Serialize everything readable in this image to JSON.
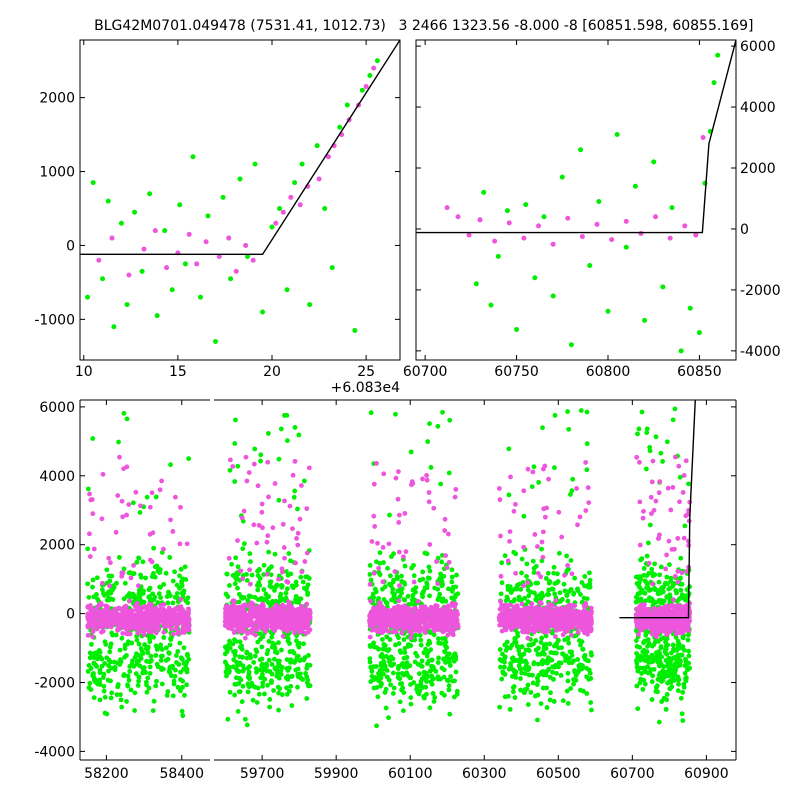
{
  "figure": {
    "title_left": "BLG42M0701.049478 (7531.41, 1012.73)",
    "title_right": "3 2466 1323.56 -8.000 -8 [60851.598, 60855.169]"
  },
  "colors": {
    "series_a": "#00ee00",
    "series_b": "#ee55dd",
    "model": "#000000"
  },
  "chart_data": [
    {
      "type": "scatter",
      "panel": "top-left zoom",
      "xlim": [
        9.8,
        26.8
      ],
      "ylim": [
        -1550,
        2780
      ],
      "x_offset_label": "+6.083e4",
      "xticks": [
        10,
        15,
        20,
        25
      ],
      "yticks": [
        -1000,
        0,
        1000,
        2000
      ],
      "model_line": {
        "x": [
          9.8,
          19.5,
          26.8
        ],
        "y": [
          -120,
          -120,
          2780
        ]
      },
      "series": [
        {
          "color_key": "series_a",
          "x": [
            10.2,
            10.5,
            11.0,
            11.3,
            11.6,
            12.0,
            12.3,
            12.7,
            13.1,
            13.5,
            13.9,
            14.3,
            14.7,
            15.1,
            15.4,
            15.8,
            16.2,
            16.6,
            17.0,
            17.4,
            17.8,
            18.3,
            18.7,
            19.1,
            19.5,
            20.0,
            20.4,
            20.8,
            21.2,
            21.6,
            22.0,
            22.4,
            22.8,
            23.2,
            23.6,
            24.0,
            24.4,
            24.8,
            25.2,
            25.6
          ],
          "y": [
            -700,
            850,
            -450,
            600,
            -1100,
            300,
            -800,
            450,
            -350,
            700,
            -950,
            200,
            -600,
            550,
            -250,
            1200,
            -700,
            400,
            -1300,
            650,
            -450,
            900,
            -150,
            1100,
            -900,
            250,
            500,
            -600,
            850,
            1100,
            -800,
            1350,
            500,
            -300,
            1600,
            1900,
            -1150,
            2100,
            2300,
            2500
          ]
        },
        {
          "color_key": "series_b",
          "x": [
            10.8,
            11.5,
            12.4,
            13.2,
            13.8,
            14.4,
            15.0,
            15.6,
            16.0,
            16.5,
            17.2,
            17.7,
            18.1,
            18.6,
            19.0,
            20.2,
            20.6,
            21.0,
            21.5,
            21.9,
            22.5,
            23.0,
            23.3,
            23.7,
            24.1,
            24.6,
            25.0,
            25.4
          ],
          "y": [
            -200,
            100,
            -400,
            -50,
            200,
            -300,
            -100,
            150,
            -250,
            50,
            -150,
            100,
            -350,
            0,
            -200,
            300,
            450,
            650,
            550,
            800,
            900,
            1200,
            1350,
            1500,
            1700,
            1900,
            2150,
            2400
          ]
        }
      ]
    },
    {
      "type": "scatter",
      "panel": "top-right",
      "xlim": [
        60695,
        60870
      ],
      "ylim": [
        -4300,
        6200
      ],
      "xticks": [
        60700,
        60750,
        60800,
        60850
      ],
      "yticks": [
        -4000,
        -2000,
        0,
        2000,
        4000,
        6000
      ],
      "model_line": {
        "x": [
          60695,
          60851.6,
          60855.2,
          60870
        ],
        "y": [
          -120,
          -120,
          2800,
          6200
        ]
      },
      "series": [
        {
          "color_key": "series_a",
          "x": [
            60728,
            60732,
            60736,
            60740,
            60745,
            60750,
            60755,
            60760,
            60765,
            60770,
            60775,
            60780,
            60785,
            60790,
            60795,
            60800,
            60805,
            60810,
            60815,
            60820,
            60825,
            60830,
            60835,
            60840,
            60845,
            60850,
            60853,
            60856,
            60858,
            60860
          ],
          "y": [
            -1800,
            1200,
            -2500,
            -900,
            600,
            -3300,
            800,
            -1600,
            400,
            -2200,
            1700,
            -3800,
            2600,
            -1200,
            900,
            -2700,
            3100,
            -600,
            1400,
            -3000,
            2200,
            -1900,
            700,
            -4000,
            -2600,
            -3400,
            1500,
            3200,
            4800,
            5700
          ]
        },
        {
          "color_key": "series_b",
          "x": [
            60712,
            60718,
            60724,
            60730,
            60738,
            60746,
            60754,
            60762,
            60770,
            60778,
            60786,
            60794,
            60802,
            60810,
            60818,
            60826,
            60834,
            60842,
            60848,
            60852
          ],
          "y": [
            700,
            400,
            -200,
            300,
            -400,
            200,
            -300,
            100,
            -500,
            350,
            -250,
            150,
            -350,
            250,
            -150,
            400,
            -300,
            100,
            -200,
            3000
          ]
        }
      ]
    },
    {
      "type": "scatter",
      "panel": "bottom full light curve",
      "ylim": [
        -4250,
        6200
      ],
      "yticks": [
        -4000,
        -2000,
        0,
        2000,
        4000,
        6000
      ],
      "segments": [
        {
          "xlim": [
            58130,
            58475
          ],
          "xticks": [
            58200,
            58400
          ]
        },
        {
          "xlim": [
            59570,
            60980
          ],
          "xticks": [
            59700,
            59900,
            60100,
            60300,
            60500,
            60700,
            60900
          ]
        }
      ],
      "seasons": [
        {
          "x_start": 58150,
          "x_end": 58420
        },
        {
          "x_start": 59600,
          "x_end": 59830
        },
        {
          "x_start": 59990,
          "x_end": 60230
        },
        {
          "x_start": 60340,
          "x_end": 60590
        },
        {
          "x_start": 60710,
          "x_end": 60855
        }
      ],
      "model_line": {
        "x": [
          60665,
          60851.6,
          60855.2,
          60870
        ],
        "y": [
          -120,
          -120,
          2800,
          6200
        ]
      }
    }
  ]
}
